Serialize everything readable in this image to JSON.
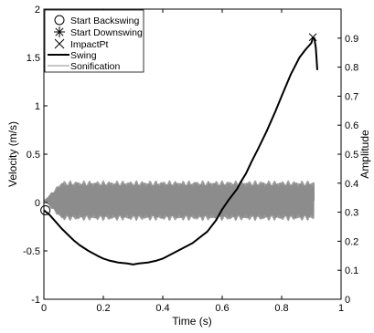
{
  "chart_data": {
    "type": "line",
    "xlabel": "Time (s)",
    "ylabel_left": "Velocity (m/s)",
    "ylabel_right": "Amplitude",
    "xlim": [
      0,
      1
    ],
    "ylim_left": [
      -1,
      2
    ],
    "ylim_right": [
      0,
      1
    ],
    "x_ticks": [
      "0",
      "0.2",
      "0.4",
      "0.6",
      "0.8",
      "1"
    ],
    "y_left_ticks": [
      "-1",
      "-0.5",
      "0",
      "0.5",
      "1",
      "1.5",
      "2"
    ],
    "y_right_ticks": [
      "0",
      "0.1",
      "0.2",
      "0.3",
      "0.4",
      "0.5",
      "0.6",
      "0.7",
      "0.8",
      "0.9"
    ],
    "grid": false,
    "legend_position": "top-left",
    "legend": [
      {
        "label": "Start Backswing",
        "marker": "circle"
      },
      {
        "label": "Start Downswing",
        "marker": "asterisk"
      },
      {
        "label": "ImpactPt",
        "marker": "x"
      },
      {
        "label": "Swing",
        "marker": "line-black"
      },
      {
        "label": "Sonification",
        "marker": "line-gray"
      }
    ],
    "series": [
      {
        "name": "Swing",
        "axis": "left",
        "color": "#000000",
        "x": [
          0.0,
          0.02,
          0.04,
          0.06,
          0.08,
          0.1,
          0.12,
          0.15,
          0.18,
          0.2,
          0.22,
          0.25,
          0.28,
          0.3,
          0.32,
          0.35,
          0.38,
          0.4,
          0.45,
          0.5,
          0.55,
          0.58,
          0.6,
          0.62,
          0.64,
          0.65,
          0.66,
          0.68,
          0.7,
          0.72,
          0.75,
          0.78,
          0.8,
          0.83,
          0.86,
          0.88,
          0.9,
          0.905,
          0.91,
          0.915,
          0.92
        ],
        "y": [
          -0.08,
          -0.13,
          -0.2,
          -0.27,
          -0.33,
          -0.39,
          -0.44,
          -0.5,
          -0.55,
          -0.58,
          -0.6,
          -0.62,
          -0.63,
          -0.64,
          -0.63,
          -0.62,
          -0.6,
          -0.58,
          -0.5,
          -0.42,
          -0.3,
          -0.18,
          -0.07,
          0.02,
          0.1,
          0.14,
          0.2,
          0.3,
          0.43,
          0.55,
          0.74,
          0.95,
          1.1,
          1.32,
          1.5,
          1.58,
          1.65,
          1.7,
          1.7,
          1.6,
          1.37
        ]
      },
      {
        "name": "Sonification",
        "axis": "right",
        "color": "#8c8c8c",
        "note_amplitude_band": [
          0.27,
          0.41
        ],
        "x_range": [
          0.0,
          0.91
        ]
      }
    ],
    "markers": [
      {
        "label": "Start Backswing",
        "marker": "circle",
        "x": 0.005,
        "y": -0.08
      },
      {
        "label": "ImpactPt",
        "marker": "x",
        "x": 0.905,
        "y": 1.71
      }
    ]
  }
}
